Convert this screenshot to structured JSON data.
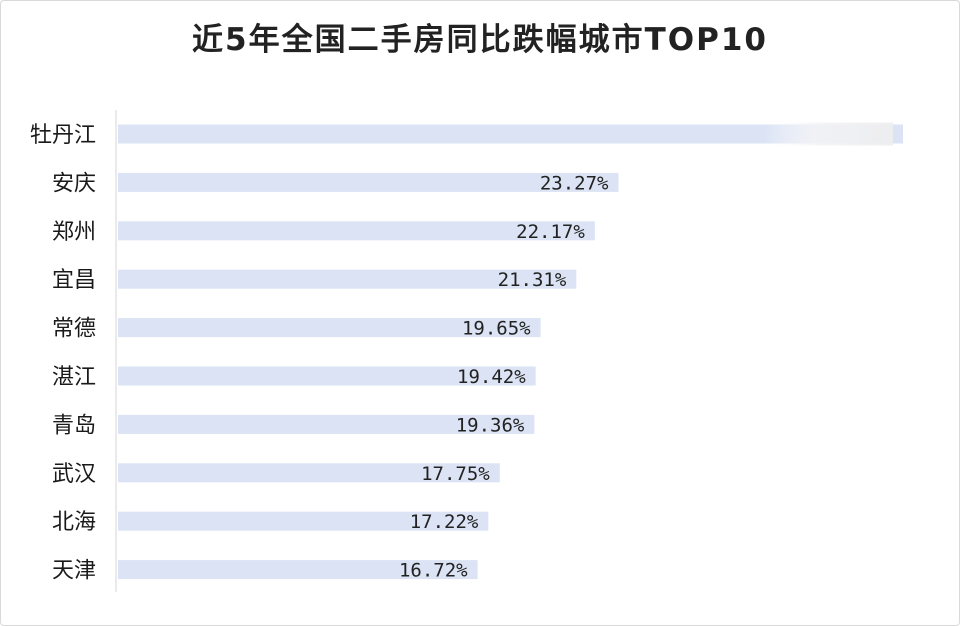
{
  "chart_data": {
    "type": "bar",
    "orientation": "horizontal",
    "title": "近5年全国二手房同比跌幅城市TOP10",
    "categories": [
      "牡丹江",
      "安庆",
      "郑州",
      "宜昌",
      "常德",
      "湛江",
      "青岛",
      "武汉",
      "北海",
      "天津"
    ],
    "values": [
      36.5,
      23.27,
      22.17,
      21.31,
      19.65,
      19.42,
      19.36,
      17.75,
      17.22,
      16.72
    ],
    "value_labels": [
      "",
      "23.27%",
      "22.17%",
      "21.31%",
      "19.65%",
      "19.42%",
      "19.36%",
      "17.75%",
      "17.22%",
      "16.72%"
    ],
    "unit": "%",
    "xlim": [
      0,
      36.5
    ],
    "bar_color": "#dbe3f4",
    "grid": false,
    "legend": "none"
  }
}
